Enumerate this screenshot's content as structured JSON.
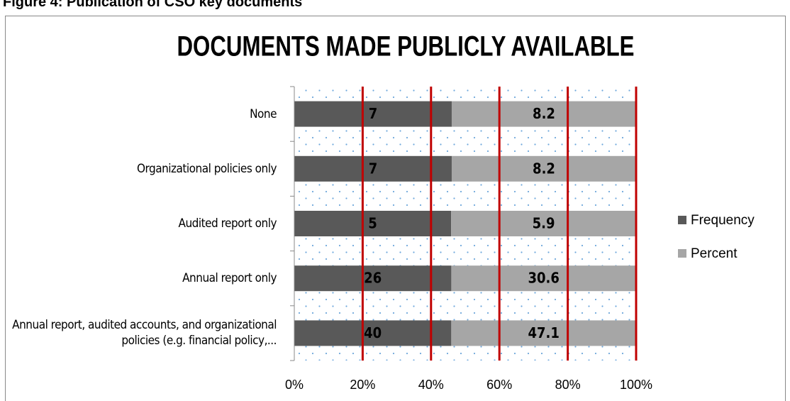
{
  "caption": "Figure 4: Publication of CSO key documents",
  "chart_data": {
    "type": "bar",
    "orientation": "horizontal",
    "stack": "percent",
    "title": "DOCUMENTS MADE PUBLICLY AVAILABLE",
    "categories": [
      "None",
      "Organizational policies only",
      "Audited report only",
      "Annual report only",
      "Annual report, audited accounts, and organizational policies (e.g. financial policy,..."
    ],
    "series": [
      {
        "name": "Frequency",
        "color": "#595959",
        "values": [
          7,
          7,
          5,
          26,
          40
        ]
      },
      {
        "name": "Percent",
        "color": "#a6a6a6",
        "values": [
          8.2,
          8.2,
          5.9,
          30.6,
          47.1
        ]
      }
    ],
    "xlim": [
      0,
      100
    ],
    "xticks": [
      {
        "value": 0,
        "label": "0%"
      },
      {
        "value": 20,
        "label": "20%"
      },
      {
        "value": 40,
        "label": "40%"
      },
      {
        "value": 60,
        "label": "60%"
      },
      {
        "value": 80,
        "label": "80%"
      },
      {
        "value": 100,
        "label": "100%"
      }
    ],
    "grid": true,
    "grid_color": "#c00000",
    "legend": "right"
  }
}
